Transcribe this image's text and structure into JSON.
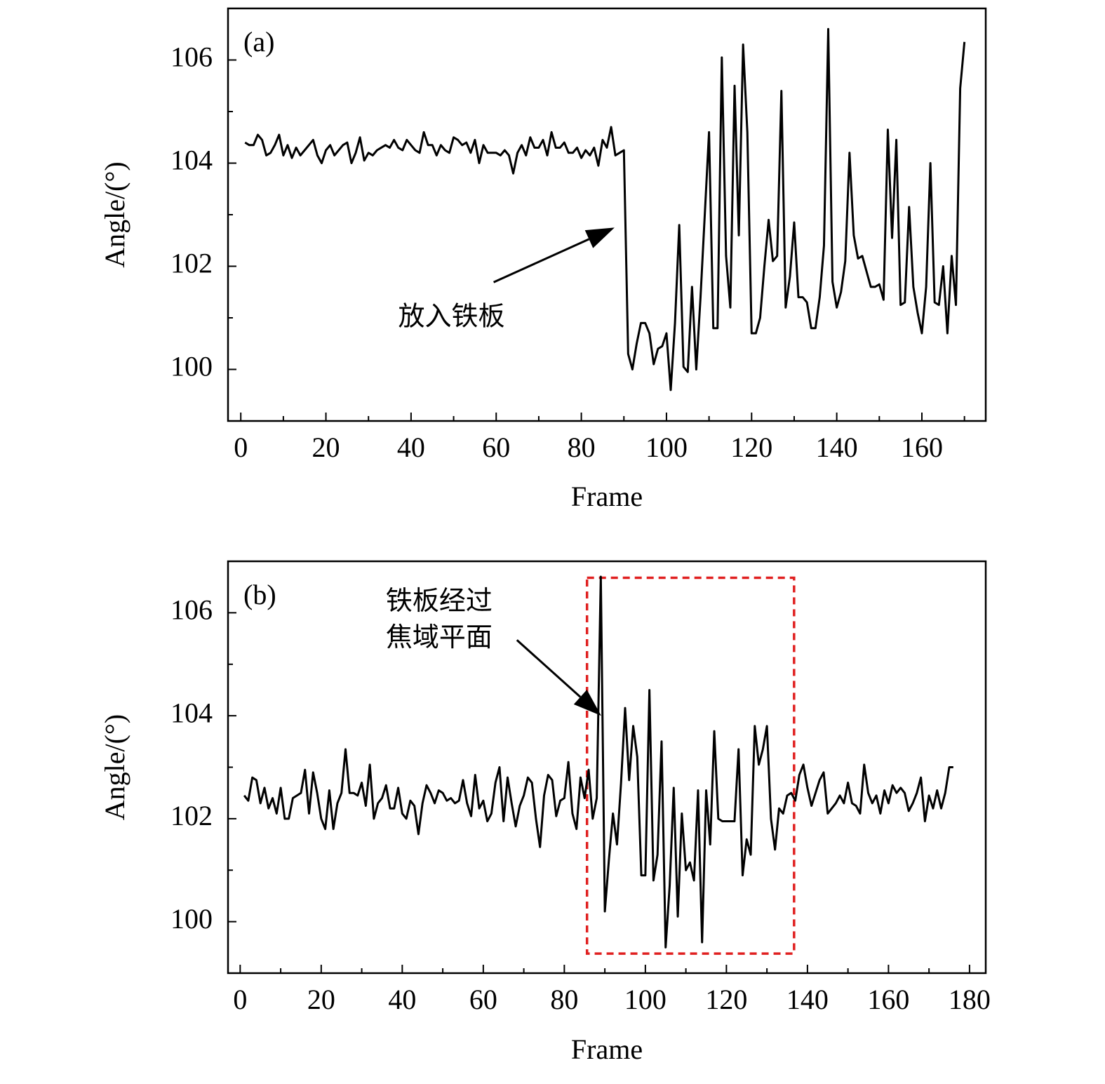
{
  "chart_data": [
    {
      "type": "line",
      "panel_label": "(a)",
      "xlabel": "Frame",
      "ylabel": "Angle/(°)",
      "xlim": [
        -3,
        175
      ],
      "ylim": [
        99,
        107
      ],
      "xticks": [
        0,
        20,
        40,
        60,
        80,
        100,
        120,
        140,
        160
      ],
      "xminorticks": [
        10,
        30,
        50,
        70,
        90,
        110,
        130,
        150,
        170
      ],
      "yticks": [
        100,
        102,
        104,
        106
      ],
      "yminorticks": [
        101,
        103,
        105
      ],
      "color": "#000000",
      "annotation": [
        "放入铁板"
      ],
      "x": [
        1,
        2,
        3,
        4,
        5,
        6,
        7,
        8,
        9,
        10,
        11,
        12,
        13,
        14,
        15,
        16,
        17,
        18,
        19,
        20,
        21,
        22,
        23,
        24,
        25,
        26,
        27,
        28,
        29,
        30,
        31,
        32,
        33,
        34,
        35,
        36,
        37,
        38,
        39,
        40,
        41,
        42,
        43,
        44,
        45,
        46,
        47,
        48,
        49,
        50,
        51,
        52,
        53,
        54,
        55,
        56,
        57,
        58,
        59,
        60,
        61,
        62,
        63,
        64,
        65,
        66,
        67,
        68,
        69,
        70,
        71,
        72,
        73,
        74,
        75,
        76,
        77,
        78,
        79,
        80,
        81,
        82,
        83,
        84,
        85,
        86,
        87,
        88,
        89,
        90,
        91,
        92,
        93,
        94,
        95,
        96,
        97,
        98,
        99,
        100,
        101,
        102,
        103,
        104,
        105,
        106,
        107,
        108,
        109,
        110,
        111,
        112,
        113,
        114,
        115,
        116,
        117,
        118,
        119,
        120,
        121,
        122,
        123,
        124,
        125,
        126,
        127,
        128,
        129,
        130,
        131,
        132,
        133,
        134,
        135,
        136,
        137,
        138,
        139,
        140,
        141,
        142,
        143,
        144,
        145,
        146,
        147,
        148,
        149,
        150,
        151,
        152,
        153,
        154,
        155,
        156,
        157,
        158,
        159,
        160,
        161,
        162,
        163,
        164,
        165,
        166,
        167,
        168,
        169,
        170
      ],
      "values": [
        104.4,
        104.35,
        104.35,
        104.55,
        104.45,
        104.15,
        104.2,
        104.35,
        104.55,
        104.15,
        104.35,
        104.1,
        104.3,
        104.15,
        104.25,
        104.35,
        104.45,
        104.15,
        104.0,
        104.25,
        104.35,
        104.15,
        104.25,
        104.35,
        104.4,
        104.0,
        104.2,
        104.5,
        104.05,
        104.2,
        104.15,
        104.25,
        104.3,
        104.35,
        104.3,
        104.45,
        104.3,
        104.25,
        104.45,
        104.35,
        104.25,
        104.2,
        104.6,
        104.35,
        104.35,
        104.15,
        104.35,
        104.25,
        104.2,
        104.5,
        104.45,
        104.35,
        104.4,
        104.2,
        104.45,
        104.0,
        104.35,
        104.2,
        104.2,
        104.2,
        104.15,
        104.25,
        104.15,
        103.8,
        104.2,
        104.35,
        104.15,
        104.5,
        104.3,
        104.3,
        104.45,
        104.15,
        104.6,
        104.3,
        104.3,
        104.4,
        104.2,
        104.2,
        104.3,
        104.1,
        104.25,
        104.15,
        104.3,
        103.95,
        104.45,
        104.3,
        104.7,
        104.15,
        104.2,
        104.25,
        100.3,
        100.0,
        100.5,
        100.9,
        100.9,
        100.7,
        100.1,
        100.4,
        100.45,
        100.7,
        99.6,
        100.9,
        102.8,
        100.05,
        99.95,
        101.6,
        100.0,
        101.4,
        103.0,
        104.6,
        100.8,
        100.8,
        106.05,
        102.2,
        101.2,
        105.5,
        102.6,
        106.3,
        104.6,
        100.7,
        100.7,
        101.0,
        102.0,
        102.9,
        102.1,
        102.2,
        105.4,
        101.2,
        101.8,
        102.85,
        101.4,
        101.4,
        101.3,
        100.8,
        100.8,
        101.4,
        102.4,
        106.6,
        101.7,
        101.2,
        101.5,
        102.1,
        104.2,
        102.6,
        102.15,
        102.2,
        101.9,
        101.6,
        101.6,
        101.65,
        101.35,
        104.65,
        102.55,
        104.45,
        101.25,
        101.3,
        103.15,
        101.6,
        101.1,
        100.7,
        101.6,
        104.0,
        101.3,
        101.25,
        102.0,
        100.7,
        102.2,
        101.25,
        105.45,
        106.35
      ]
    },
    {
      "type": "line",
      "panel_label": "(b)",
      "xlabel": "Frame",
      "ylabel": "Angle/(°)",
      "xlim": [
        -3,
        184
      ],
      "ylim": [
        99,
        107
      ],
      "xticks": [
        0,
        20,
        40,
        60,
        80,
        100,
        120,
        140,
        160,
        180
      ],
      "xminorticks": [
        10,
        30,
        50,
        70,
        90,
        110,
        130,
        150,
        170
      ],
      "yticks": [
        100,
        102,
        104,
        106
      ],
      "yminorticks": [
        101,
        103,
        105
      ],
      "color": "#000000",
      "highlight_color": "#e02020",
      "annotation": [
        "铁板经过",
        "焦域平面"
      ],
      "x": [
        1,
        2,
        3,
        4,
        5,
        6,
        7,
        8,
        9,
        10,
        11,
        12,
        13,
        14,
        15,
        16,
        17,
        18,
        19,
        20,
        21,
        22,
        23,
        24,
        25,
        26,
        27,
        28,
        29,
        30,
        31,
        32,
        33,
        34,
        35,
        36,
        37,
        38,
        39,
        40,
        41,
        42,
        43,
        44,
        45,
        46,
        47,
        48,
        49,
        50,
        51,
        52,
        53,
        54,
        55,
        56,
        57,
        58,
        59,
        60,
        61,
        62,
        63,
        64,
        65,
        66,
        67,
        68,
        69,
        70,
        71,
        72,
        73,
        74,
        75,
        76,
        77,
        78,
        79,
        80,
        81,
        82,
        83,
        84,
        85,
        86,
        87,
        88,
        89,
        90,
        91,
        92,
        93,
        94,
        95,
        96,
        97,
        98,
        99,
        100,
        101,
        102,
        103,
        104,
        105,
        106,
        107,
        108,
        109,
        110,
        111,
        112,
        113,
        114,
        115,
        116,
        117,
        118,
        119,
        120,
        121,
        122,
        123,
        124,
        125,
        126,
        127,
        128,
        129,
        130,
        131,
        132,
        133,
        134,
        135,
        136,
        137,
        138,
        139,
        140,
        141,
        142,
        143,
        144,
        145,
        146,
        147,
        148,
        149,
        150,
        151,
        152,
        153,
        154,
        155,
        156,
        157,
        158,
        159,
        160,
        161,
        162,
        163,
        164,
        165,
        166,
        167,
        168,
        169,
        170,
        171,
        172,
        173,
        174,
        175,
        176
      ],
      "values": [
        102.45,
        102.35,
        102.8,
        102.75,
        102.3,
        102.6,
        102.2,
        102.4,
        102.1,
        102.6,
        102.0,
        102.0,
        102.4,
        102.45,
        102.5,
        102.95,
        102.1,
        102.9,
        102.5,
        102.0,
        101.8,
        102.55,
        101.8,
        102.3,
        102.5,
        103.35,
        102.5,
        102.5,
        102.45,
        102.7,
        102.25,
        103.05,
        102.0,
        102.3,
        102.4,
        102.65,
        102.2,
        102.2,
        102.6,
        102.1,
        102.0,
        102.35,
        102.25,
        101.7,
        102.3,
        102.65,
        102.5,
        102.3,
        102.55,
        102.5,
        102.35,
        102.4,
        102.3,
        102.35,
        102.75,
        102.3,
        102.05,
        102.85,
        102.2,
        102.35,
        101.95,
        102.1,
        102.7,
        103.0,
        101.95,
        102.8,
        102.3,
        101.85,
        102.25,
        102.45,
        102.8,
        102.7,
        102.0,
        101.45,
        102.45,
        102.85,
        102.75,
        102.05,
        102.35,
        102.4,
        103.1,
        102.1,
        101.8,
        102.8,
        102.4,
        102.95,
        102.0,
        102.4,
        106.7,
        100.2,
        101.2,
        102.1,
        101.5,
        102.7,
        104.15,
        102.75,
        103.8,
        103.2,
        100.9,
        100.9,
        104.5,
        100.8,
        101.3,
        103.5,
        99.5,
        100.7,
        102.6,
        100.1,
        102.1,
        101.0,
        101.15,
        100.8,
        102.55,
        99.6,
        102.55,
        101.5,
        103.7,
        102.0,
        101.95,
        101.95,
        101.95,
        101.95,
        103.35,
        100.9,
        101.6,
        101.3,
        103.8,
        103.05,
        103.35,
        103.8,
        102.0,
        101.4,
        102.2,
        102.1,
        102.45,
        102.5,
        102.35,
        102.85,
        103.05,
        102.6,
        102.25,
        102.5,
        102.75,
        102.9,
        102.1,
        102.2,
        102.3,
        102.45,
        102.3,
        102.7,
        102.3,
        102.25,
        102.1,
        103.05,
        102.5,
        102.3,
        102.45,
        102.1,
        102.55,
        102.3,
        102.65,
        102.5,
        102.6,
        102.5,
        102.15,
        102.3,
        102.5,
        102.8,
        101.95,
        102.45,
        102.2,
        102.55,
        102.2,
        102.5,
        103.0,
        103.0
      ]
    }
  ]
}
